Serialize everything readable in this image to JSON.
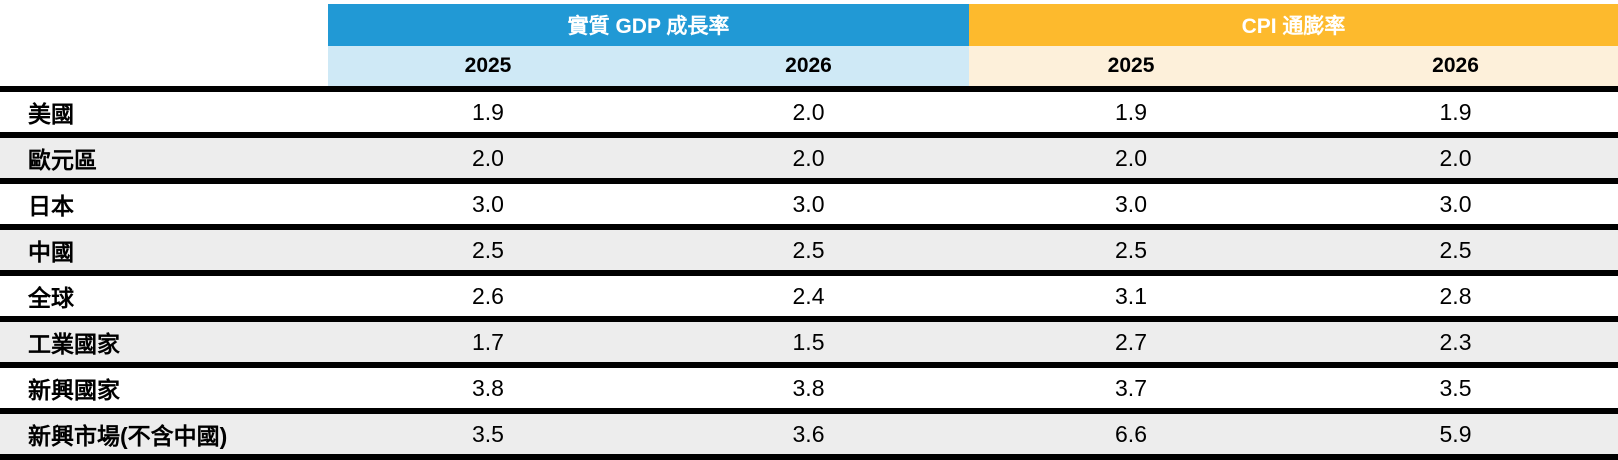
{
  "colors": {
    "gdp_header_bg": "#2199d5",
    "gdp_subheader_bg": "#cfe9f6",
    "cpi_header_bg": "#fdba2d",
    "cpi_subheader_bg": "#fdf0da",
    "row_bg": "#ffffff",
    "row_alt_bg": "#ededed",
    "divider": "#000000",
    "header_text": "#ffffff",
    "body_text": "#000000"
  },
  "chart_data": {
    "type": "table",
    "column_groups": [
      {
        "label": "實質 GDP 成長率",
        "span": 2
      },
      {
        "label": "CPI 通膨率",
        "span": 2
      }
    ],
    "sub_columns": [
      "2025",
      "2026",
      "2025",
      "2026"
    ],
    "corner_label": "",
    "rows": [
      {
        "region": "美國",
        "values": [
          "1.9",
          "2.0",
          "1.9",
          "1.9"
        ]
      },
      {
        "region": "歐元區",
        "values": [
          "2.0",
          "2.0",
          "2.0",
          "2.0"
        ]
      },
      {
        "region": "日本",
        "values": [
          "3.0",
          "3.0",
          "3.0",
          "3.0"
        ]
      },
      {
        "region": "中國",
        "values": [
          "2.5",
          "2.5",
          "2.5",
          "2.5"
        ]
      },
      {
        "region": "全球",
        "values": [
          "2.6",
          "2.4",
          "3.1",
          "2.8"
        ]
      },
      {
        "region": "工業國家",
        "values": [
          "1.7",
          "1.5",
          "2.7",
          "2.3"
        ]
      },
      {
        "region": "新興國家",
        "values": [
          "3.8",
          "3.8",
          "3.7",
          "3.5"
        ]
      },
      {
        "region": "新興市場(不含中國)",
        "values": [
          "3.5",
          "3.6",
          "6.6",
          "5.9"
        ]
      }
    ]
  }
}
